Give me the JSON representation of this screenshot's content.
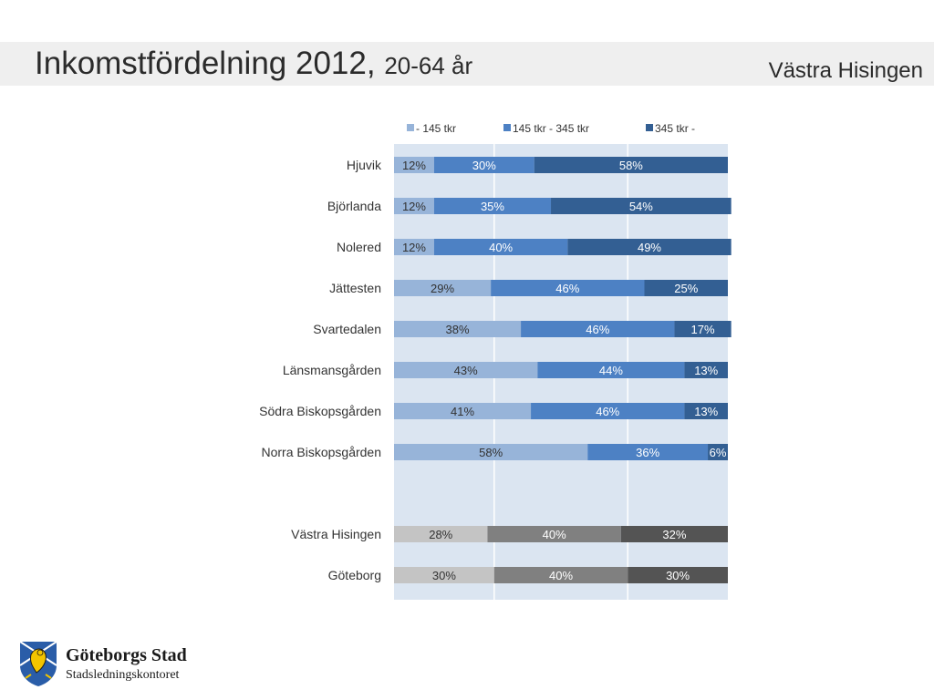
{
  "header": {
    "title": "Inkomstfördelning 2012,",
    "subtitle": "20-64 år",
    "region": "Västra Hisingen"
  },
  "footer": {
    "org_name": "Göteborgs Stad",
    "department": "Stadsledningskontoret"
  },
  "chart_data": {
    "type": "bar",
    "orientation": "horizontal",
    "stacked": "percent",
    "legend_position": "top",
    "grid": true,
    "xlim": [
      0,
      100
    ],
    "categories": [
      "Hjuvik",
      "Björlanda",
      "Nolered",
      "Jättesten",
      "Svartedalen",
      "Länsmansgården",
      "Södra Biskopsgården",
      "Norra Biskopsgården",
      "Västra Hisingen",
      "Göteborg"
    ],
    "category_slots": [
      0,
      1,
      2,
      3,
      4,
      5,
      6,
      7,
      9,
      10
    ],
    "series": [
      {
        "name": "- 145 tkr",
        "values": [
          12,
          12,
          12,
          29,
          38,
          43,
          41,
          58,
          28,
          30
        ]
      },
      {
        "name": "145 tkr - 345 tkr",
        "values": [
          30,
          35,
          40,
          46,
          46,
          44,
          46,
          36,
          40,
          40
        ]
      },
      {
        "name": "345 tkr -",
        "values": [
          58,
          54,
          49,
          25,
          17,
          13,
          13,
          6,
          32,
          30
        ]
      }
    ],
    "colors": {
      "blue": [
        "#97b4d9",
        "#4d81c4",
        "#335f93"
      ],
      "gray": [
        "#c4c4c4",
        "#808080",
        "#545454"
      ],
      "plot_background": "#dbe5f1",
      "gridline": "#ffffff"
    },
    "gray_categories": [
      "Västra Hisingen",
      "Göteborg"
    ]
  }
}
